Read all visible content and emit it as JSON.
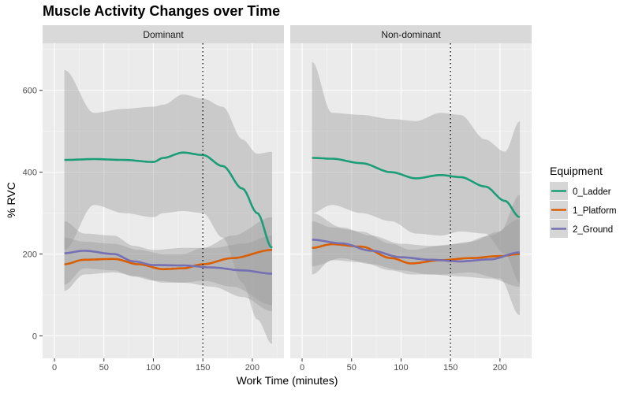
{
  "chart_data": {
    "type": "line",
    "title": "Muscle Activity Changes over Time",
    "xlabel": "Work Time (minutes)",
    "ylabel": "% RVC",
    "xlim": [
      -12,
      232
    ],
    "ylim": [
      -55,
      715
    ],
    "xticks": [
      0,
      50,
      100,
      150,
      200
    ],
    "yticks": [
      0,
      200,
      400,
      600
    ],
    "vline_x": 150,
    "grid": true,
    "legend": {
      "title": "Equipment",
      "position": "right",
      "items": [
        {
          "label": "0_Ladder",
          "color": "#1b9e77"
        },
        {
          "label": "1_Platform",
          "color": "#d95f02"
        },
        {
          "label": "2_Ground",
          "color": "#7570b3"
        }
      ]
    },
    "panels": [
      {
        "label": "Dominant",
        "series": [
          {
            "name": "0_Ladder",
            "color": "#1b9e77",
            "x": [
              10,
              40,
              70,
              100,
              110,
              130,
              150,
              170,
              190,
              205,
              220
            ],
            "y": [
              430,
              432,
              430,
              425,
              435,
              448,
              442,
              415,
              360,
              300,
              215
            ],
            "lower": [
              210,
              320,
              300,
              290,
              300,
              305,
              300,
              240,
              130,
              40,
              -20
            ],
            "upper": [
              650,
              545,
              555,
              560,
              565,
              590,
              580,
              560,
              480,
              445,
              450
            ]
          },
          {
            "name": "1_Platform",
            "color": "#d95f02",
            "x": [
              10,
              30,
              60,
              85,
              110,
              130,
              150,
              180,
              220
            ],
            "y": [
              175,
              186,
              188,
              175,
              163,
              165,
              175,
              190,
              210
            ],
            "lower": [
              110,
              150,
              155,
              145,
              130,
              130,
              135,
              120,
              75
            ],
            "upper": [
              240,
              230,
              225,
              210,
              200,
              200,
              215,
              245,
              290
            ]
          },
          {
            "name": "2_Ground",
            "color": "#7570b3",
            "x": [
              10,
              30,
              60,
              80,
              100,
              130,
              160,
              190,
              220
            ],
            "y": [
              202,
              208,
              200,
              182,
              173,
              172,
              167,
              160,
              152
            ],
            "lower": [
              125,
              165,
              160,
              145,
              135,
              130,
              120,
              95,
              60
            ],
            "upper": [
              280,
              250,
              245,
              220,
              210,
              215,
              215,
              225,
              245
            ]
          }
        ]
      },
      {
        "label": "Non-dominant",
        "series": [
          {
            "name": "0_Ladder",
            "color": "#1b9e77",
            "x": [
              10,
              30,
              60,
              90,
              115,
              140,
              160,
              185,
              205,
              220
            ],
            "y": [
              435,
              433,
              422,
              400,
              385,
              393,
              388,
              365,
              330,
              290
            ],
            "lower": [
              300,
              320,
              300,
              280,
              250,
              245,
              255,
              250,
              200,
              130
            ],
            "upper": [
              670,
              545,
              540,
              530,
              525,
              545,
              540,
              480,
              450,
              525
            ]
          },
          {
            "name": "1_Platform",
            "color": "#d95f02",
            "x": [
              10,
              30,
              60,
              90,
              110,
              140,
              170,
              200,
              220
            ],
            "y": [
              215,
              224,
              218,
              190,
              177,
              185,
              190,
              195,
              200
            ],
            "lower": [
              150,
              185,
              180,
              160,
              150,
              150,
              155,
              140,
              50
            ],
            "upper": [
              280,
              265,
              255,
              225,
              210,
              220,
              230,
              255,
              345
            ]
          },
          {
            "name": "2_Ground",
            "color": "#7570b3",
            "x": [
              10,
              40,
              70,
              100,
              130,
              160,
              190,
              220
            ],
            "y": [
              235,
              226,
              208,
              192,
              186,
              182,
              187,
              204
            ],
            "lower": [
              170,
              190,
              175,
              160,
              150,
              145,
              140,
              120
            ],
            "upper": [
              300,
              265,
              245,
              225,
              220,
              225,
              245,
              285
            ]
          }
        ]
      }
    ]
  }
}
